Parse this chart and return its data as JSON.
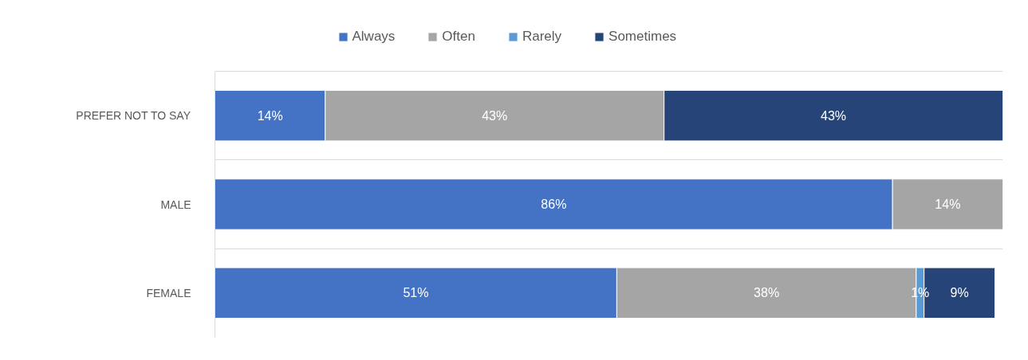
{
  "chart_data": {
    "type": "bar",
    "orientation": "horizontal",
    "stacked": true,
    "categories": [
      "PREFER NOT TO SAY",
      "MALE",
      "FEMALE"
    ],
    "series": [
      {
        "name": "Always",
        "color": "#4472c4",
        "values": [
          14,
          86,
          51
        ],
        "value_labels": [
          "14%",
          "86%",
          "51%"
        ]
      },
      {
        "name": "Often",
        "color": "#a5a5a5",
        "values": [
          43,
          14,
          38
        ],
        "value_labels": [
          "43%",
          "14%",
          "38%"
        ]
      },
      {
        "name": "Rarely",
        "color": "#5b9bd5",
        "values": [
          null,
          null,
          1
        ],
        "value_labels": [
          null,
          null,
          "1%"
        ]
      },
      {
        "name": "Sometimes",
        "color": "#264478",
        "values": [
          43,
          null,
          9
        ],
        "value_labels": [
          "43%",
          null,
          "9%"
        ]
      }
    ],
    "xlim": [
      0,
      100
    ],
    "legend": "top",
    "grid": "y",
    "tick_labels": "y"
  }
}
